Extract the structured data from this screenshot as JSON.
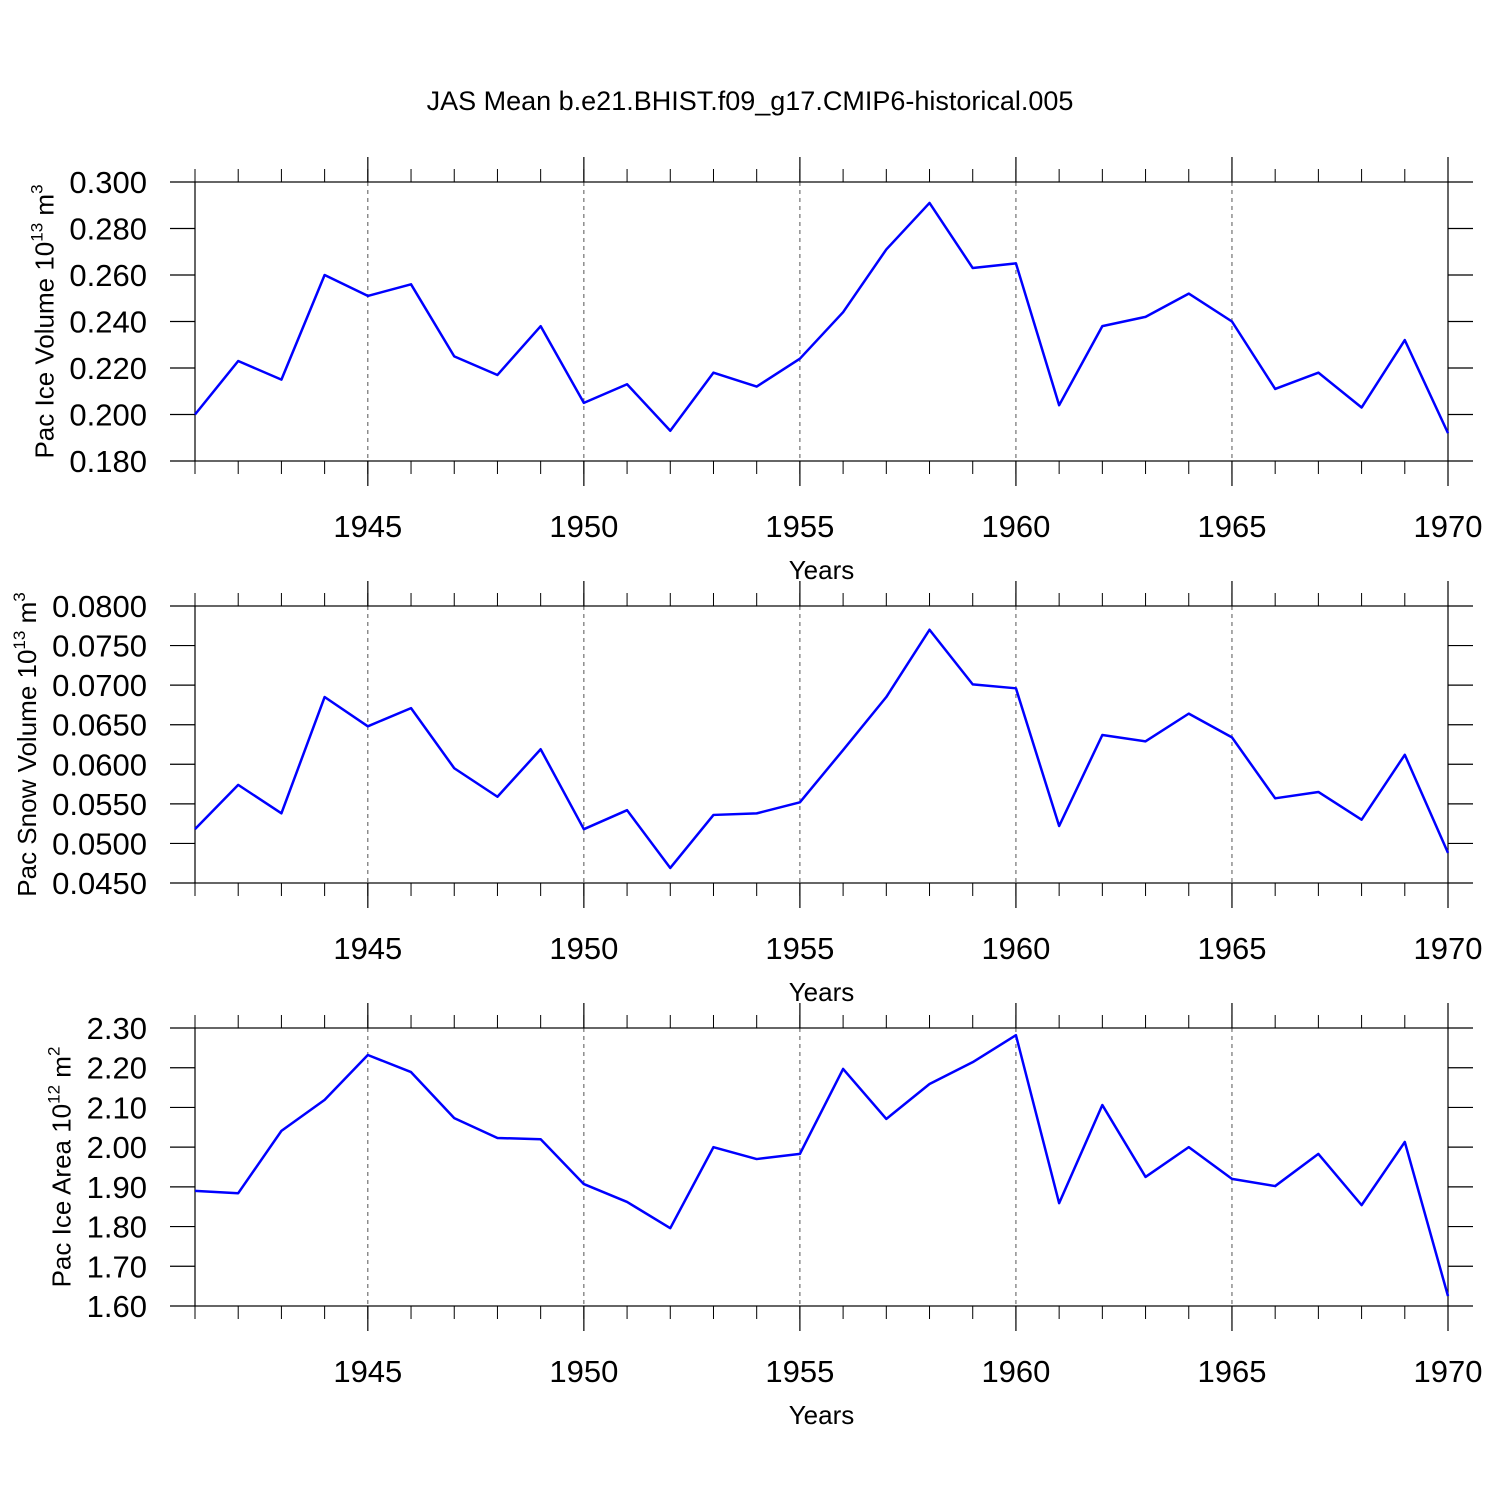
{
  "title": "JAS Mean b.e21.BHIST.f09_g17.CMIP6-historical.005",
  "chart_data": [
    {
      "type": "line",
      "xlabel": "Years",
      "ylabel": [
        "Pac Ice Volume 10",
        "13",
        " m",
        "3"
      ],
      "x": [
        1941,
        1942,
        1943,
        1944,
        1945,
        1946,
        1947,
        1948,
        1949,
        1950,
        1951,
        1952,
        1953,
        1954,
        1955,
        1956,
        1957,
        1958,
        1959,
        1960,
        1961,
        1962,
        1963,
        1964,
        1965,
        1966,
        1967,
        1968,
        1969,
        1970
      ],
      "xlim": [
        1941,
        1970
      ],
      "xticks": [
        1945,
        1950,
        1955,
        1960,
        1965,
        1970
      ],
      "grid": "x",
      "ylim": [
        0.18,
        0.3
      ],
      "yticks": [
        {
          "value": 0.18,
          "label": "0.180"
        },
        {
          "value": 0.2,
          "label": "0.200"
        },
        {
          "value": 0.22,
          "label": "0.220"
        },
        {
          "value": 0.24,
          "label": "0.240"
        },
        {
          "value": 0.26,
          "label": "0.260"
        },
        {
          "value": 0.28,
          "label": "0.280"
        },
        {
          "value": 0.3,
          "label": "0.300"
        }
      ],
      "series": [
        {
          "color": "#0000ff",
          "values": [
            0.2,
            0.223,
            0.215,
            0.26,
            0.251,
            0.256,
            0.225,
            0.217,
            0.238,
            0.205,
            0.213,
            0.193,
            0.218,
            0.212,
            0.224,
            0.244,
            0.271,
            0.291,
            0.263,
            0.265,
            0.204,
            0.238,
            0.242,
            0.252,
            0.24,
            0.211,
            0.218,
            0.203,
            0.232,
            0.192
          ]
        }
      ]
    },
    {
      "type": "line",
      "xlabel": "Years",
      "ylabel": [
        "Pac Snow Volume 10",
        "13",
        " m",
        "3"
      ],
      "x": [
        1941,
        1942,
        1943,
        1944,
        1945,
        1946,
        1947,
        1948,
        1949,
        1950,
        1951,
        1952,
        1953,
        1954,
        1955,
        1956,
        1957,
        1958,
        1959,
        1960,
        1961,
        1962,
        1963,
        1964,
        1965,
        1966,
        1967,
        1968,
        1969,
        1970
      ],
      "xlim": [
        1941,
        1970
      ],
      "xticks": [
        1945,
        1950,
        1955,
        1960,
        1965,
        1970
      ],
      "grid": "x",
      "ylim": [
        0.045,
        0.08
      ],
      "yticks": [
        {
          "value": 0.045,
          "label": "0.0450"
        },
        {
          "value": 0.05,
          "label": "0.0500"
        },
        {
          "value": 0.055,
          "label": "0.0550"
        },
        {
          "value": 0.06,
          "label": "0.0600"
        },
        {
          "value": 0.065,
          "label": "0.0650"
        },
        {
          "value": 0.07,
          "label": "0.0700"
        },
        {
          "value": 0.075,
          "label": "0.0750"
        },
        {
          "value": 0.08,
          "label": "0.0800"
        }
      ],
      "series": [
        {
          "color": "#0000ff",
          "values": [
            0.0518,
            0.0574,
            0.0538,
            0.0685,
            0.0648,
            0.0671,
            0.0595,
            0.0559,
            0.0619,
            0.0518,
            0.0542,
            0.0469,
            0.0536,
            0.0538,
            0.0552,
            0.0618,
            0.0685,
            0.077,
            0.0701,
            0.0696,
            0.0522,
            0.0637,
            0.0629,
            0.0664,
            0.0634,
            0.0557,
            0.0565,
            0.053,
            0.0612,
            0.0488
          ]
        }
      ]
    },
    {
      "type": "line",
      "xlabel": "Years",
      "ylabel": [
        "Pac Ice Area 10",
        "12",
        " m",
        "2"
      ],
      "x": [
        1941,
        1942,
        1943,
        1944,
        1945,
        1946,
        1947,
        1948,
        1949,
        1950,
        1951,
        1952,
        1953,
        1954,
        1955,
        1956,
        1957,
        1958,
        1959,
        1960,
        1961,
        1962,
        1963,
        1964,
        1965,
        1966,
        1967,
        1968,
        1969,
        1970
      ],
      "xlim": [
        1941,
        1970
      ],
      "xticks": [
        1945,
        1950,
        1955,
        1960,
        1965,
        1970
      ],
      "grid": "x",
      "ylim": [
        1.6,
        2.3
      ],
      "yticks": [
        {
          "value": 1.6,
          "label": "1.60"
        },
        {
          "value": 1.7,
          "label": "1.70"
        },
        {
          "value": 1.8,
          "label": "1.80"
        },
        {
          "value": 1.9,
          "label": "1.90"
        },
        {
          "value": 2.0,
          "label": "2.00"
        },
        {
          "value": 2.1,
          "label": "2.10"
        },
        {
          "value": 2.2,
          "label": "2.20"
        },
        {
          "value": 2.3,
          "label": "2.30"
        }
      ],
      "series": [
        {
          "color": "#0000ff",
          "values": [
            1.89,
            1.884,
            2.041,
            2.119,
            2.232,
            2.189,
            2.073,
            2.023,
            2.02,
            1.907,
            1.862,
            1.796,
            2.0,
            1.97,
            1.983,
            2.197,
            2.071,
            2.159,
            2.214,
            2.282,
            1.859,
            2.106,
            1.925,
            2.0,
            1.92,
            1.902,
            1.983,
            1.854,
            2.013,
            1.625
          ]
        }
      ]
    }
  ]
}
